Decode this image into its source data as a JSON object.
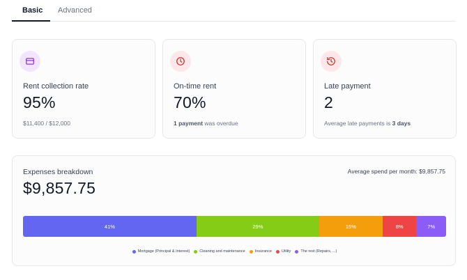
{
  "tabs": [
    {
      "label": "Basic",
      "active": true
    },
    {
      "label": "Advanced",
      "active": false
    }
  ],
  "kpis": [
    {
      "icon": "credit-card-icon",
      "accent": "#9333ea",
      "label": "Rent collection rate",
      "value": "95%",
      "sub_strong": "$11,400",
      "sub_rest": " / $12,000"
    },
    {
      "icon": "clock-icon",
      "accent": "#c0392b",
      "label": "On-time rent",
      "value": "70%",
      "sub_strong": "1 payment",
      "sub_rest": " was overdue"
    },
    {
      "icon": "history-icon",
      "accent": "#c0392b",
      "label": "Late payment",
      "value": "2",
      "sub_prefix": "Average late payments is ",
      "sub_strong": "3 days"
    }
  ],
  "expenses": {
    "title": "Expenses breakdown",
    "average_label": "Average spend per month: $9,857.75",
    "total": "$9,857.75",
    "segments": [
      {
        "name": "Mortgage (Principal & Interest)",
        "percent": 41,
        "label": "41%",
        "color": "#6366f1"
      },
      {
        "name": "Cleaning and maintenance",
        "percent": 29,
        "label": "29%",
        "color": "#84cc16"
      },
      {
        "name": "Insurance",
        "percent": 15,
        "label": "15%",
        "color": "#f59e0b"
      },
      {
        "name": "Utility",
        "percent": 8,
        "label": "8%",
        "color": "#ef4444"
      },
      {
        "name": "The rest (Repairs, ...)",
        "percent": 7,
        "label": "7%",
        "color": "#8b5cf6"
      }
    ]
  }
}
